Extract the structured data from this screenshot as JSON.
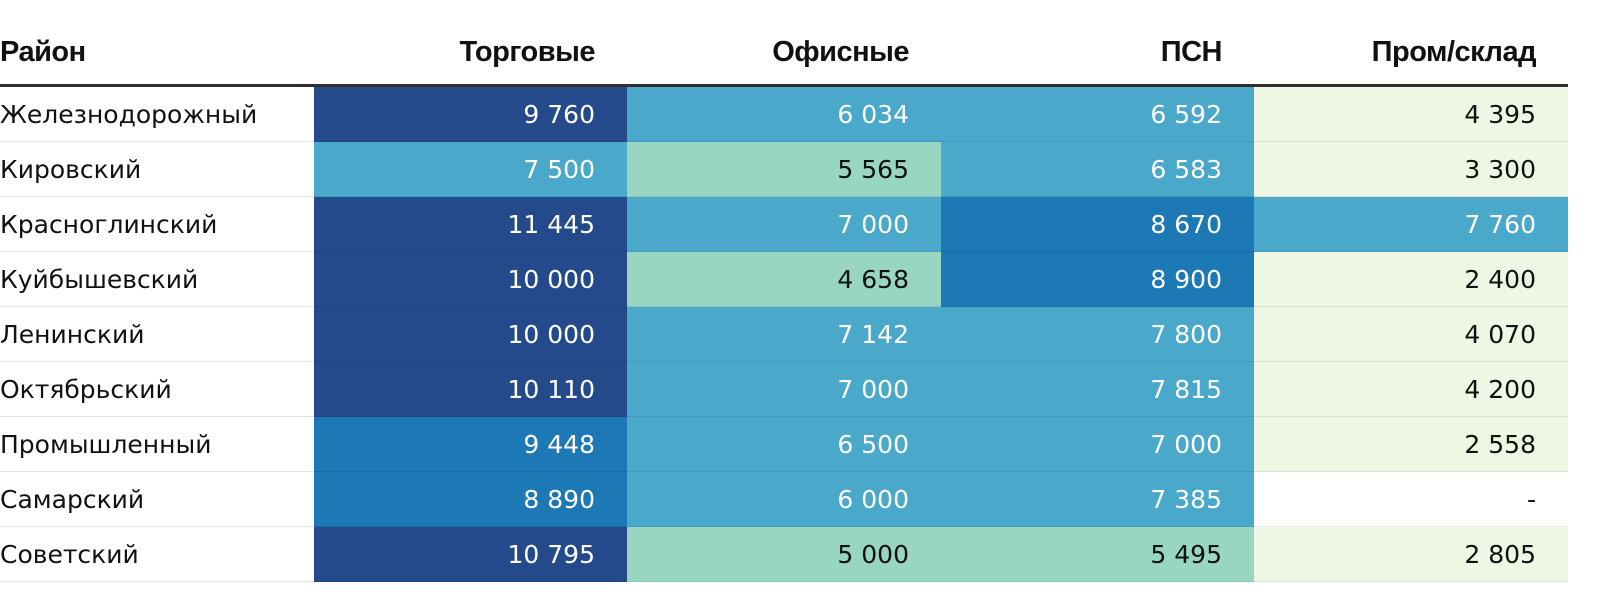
{
  "chart_data": {
    "type": "heatmap",
    "columns": [
      "Район",
      "Торговые",
      "Офисные",
      "ПСН",
      "Пром/склад"
    ],
    "rows": [
      {
        "district": "Железнодорожный",
        "values": [
          "9 760",
          "6 034",
          "6 592",
          "4 395"
        ],
        "numeric": [
          9760,
          6034,
          6592,
          4395
        ]
      },
      {
        "district": "Кировский",
        "values": [
          "7 500",
          "5 565",
          "6 583",
          "3 300"
        ],
        "numeric": [
          7500,
          5565,
          6583,
          3300
        ]
      },
      {
        "district": "Красноглинский",
        "values": [
          "11 445",
          "7 000",
          "8 670",
          "7 760"
        ],
        "numeric": [
          11445,
          7000,
          8670,
          7760
        ]
      },
      {
        "district": "Куйбышевский",
        "values": [
          "10 000",
          "4 658",
          "8 900",
          "2 400"
        ],
        "numeric": [
          10000,
          4658,
          8900,
          2400
        ]
      },
      {
        "district": "Ленинский",
        "values": [
          "10 000",
          "7 142",
          "7 800",
          "4 070"
        ],
        "numeric": [
          10000,
          7142,
          7800,
          4070
        ]
      },
      {
        "district": "Октябрьский",
        "values": [
          "10 110",
          "7 000",
          "7 815",
          "4 200"
        ],
        "numeric": [
          10110,
          7000,
          7815,
          4200
        ]
      },
      {
        "district": "Промышленный",
        "values": [
          "9 448",
          "6 500",
          "7 000",
          "2 558"
        ],
        "numeric": [
          9448,
          6500,
          7000,
          2558
        ]
      },
      {
        "district": "Самарский",
        "values": [
          "8 890",
          "6 000",
          "7 385",
          "-"
        ],
        "numeric": [
          8890,
          6000,
          7385,
          null
        ]
      },
      {
        "district": "Советский",
        "values": [
          "10 795",
          "5 000",
          "5 495",
          "2 805"
        ],
        "numeric": [
          10795,
          5000,
          5495,
          2805
        ]
      }
    ],
    "color_scale": [
      {
        "min": 0,
        "max": 4400,
        "bg": "#eef7e4",
        "fg": "#111111"
      },
      {
        "min": 4400,
        "max": 6000,
        "bg": "#98d6c1",
        "fg": "#111111"
      },
      {
        "min": 6000,
        "max": 8000,
        "bg": "#4aa8cb",
        "fg": "#ffffff"
      },
      {
        "min": 8000,
        "max": 9500,
        "bg": "#1d78b6",
        "fg": "#ffffff"
      },
      {
        "min": 9500,
        "max": 99999,
        "bg": "#244a8b",
        "fg": "#ffffff"
      }
    ],
    "missing_color": "#ffffff"
  }
}
